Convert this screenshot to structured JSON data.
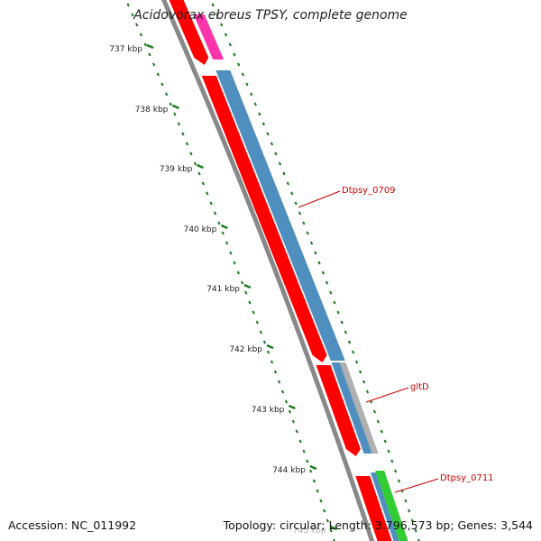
{
  "title": "Acidovorax ebreus TPSY, complete genome",
  "footer": {
    "accession": "Accession: NC_011992",
    "summary": "Topology: circular; Length: 3,796,573 bp; Genes: 3,544"
  },
  "ticks": [
    "737 kbp",
    "738 kbp",
    "739 kbp",
    "740 kbp",
    "741 kbp",
    "742 kbp",
    "743 kbp",
    "744 kbp",
    "745 kbp"
  ],
  "gene_labels": [
    "Dtpsy_0709",
    "gltD",
    "Dtpsy_0711"
  ],
  "colors": {
    "forward_cds": "#ff0000",
    "reverse_cds": "#4f8fbf",
    "pink_feature": "#ff33aa",
    "gray_feature": "#b0b0b0",
    "green_feature": "#33cc33",
    "backbone": "#888888",
    "ticks": "#1a7a1a",
    "label": "#cc0000"
  }
}
